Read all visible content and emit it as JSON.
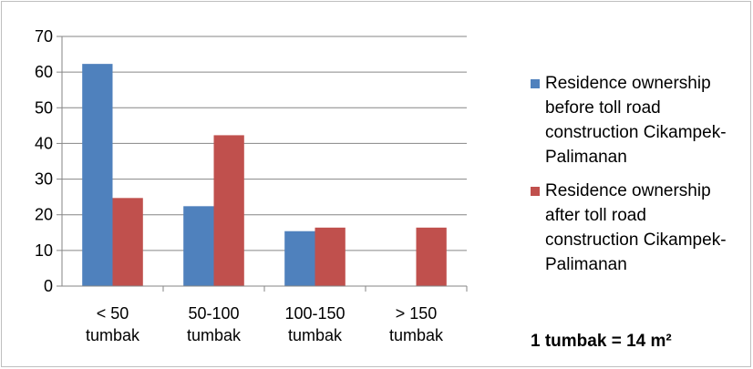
{
  "chart_data": {
    "type": "bar",
    "categories": [
      "< 50\ntumbak",
      "50-100\ntumbak",
      "100-150\ntumbak",
      "> 150\ntumbak"
    ],
    "series": [
      {
        "name": "Residence ownership before toll road construction Cikampek-Palimanan",
        "color": "#4f81bd",
        "values": [
          62.3,
          22.4,
          15.4,
          0
        ]
      },
      {
        "name": "Residence ownership after toll road construction Cikampek-Palimanan",
        "color": "#c0504d",
        "values": [
          24.7,
          42.3,
          16.4,
          16.4
        ]
      }
    ],
    "ylim": [
      0,
      70
    ],
    "yticks": [
      0,
      10,
      20,
      30,
      40,
      50,
      60,
      70
    ],
    "grid": true,
    "legend": "right",
    "annotation": "1 tumbak = 14 m²"
  }
}
